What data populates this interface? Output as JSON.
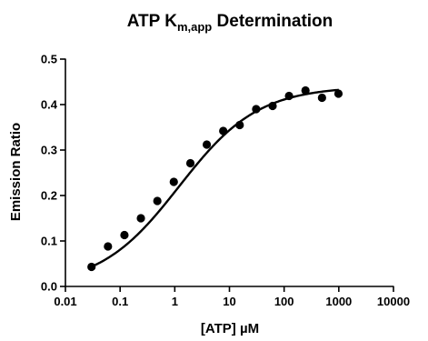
{
  "chart_data": {
    "type": "scatter",
    "title": {
      "main": "ATP K",
      "subscript": "m,app",
      "suffix": " Determination"
    },
    "xlabel": "[ATP] µM",
    "ylabel": "Emission Ratio",
    "x_scale": "log",
    "xlim": [
      0.01,
      10000
    ],
    "ylim": [
      0.0,
      0.5
    ],
    "x_ticks": [
      0.01,
      0.1,
      1,
      10,
      100,
      1000,
      10000
    ],
    "x_tick_labels": [
      "0.01",
      "0.1",
      "1",
      "10",
      "100",
      "1000",
      "10000"
    ],
    "y_ticks": [
      0.0,
      0.1,
      0.2,
      0.3,
      0.4,
      0.5
    ],
    "y_tick_labels": [
      "0.0",
      "0.1",
      "0.2",
      "0.3",
      "0.4",
      "0.5"
    ],
    "grid": false,
    "legend": "none",
    "marker_color": "#000000",
    "line_color": "#000000",
    "series": [
      {
        "points": [
          {
            "x": 0.03,
            "y": 0.043
          },
          {
            "x": 0.06,
            "y": 0.088
          },
          {
            "x": 0.12,
            "y": 0.113
          },
          {
            "x": 0.24,
            "y": 0.15
          },
          {
            "x": 0.48,
            "y": 0.188
          },
          {
            "x": 0.96,
            "y": 0.23
          },
          {
            "x": 1.93,
            "y": 0.271
          },
          {
            "x": 3.85,
            "y": 0.312
          },
          {
            "x": 7.7,
            "y": 0.342
          },
          {
            "x": 15.4,
            "y": 0.355
          },
          {
            "x": 30.8,
            "y": 0.39
          },
          {
            "x": 61.6,
            "y": 0.397
          },
          {
            "x": 123,
            "y": 0.419
          },
          {
            "x": 246,
            "y": 0.431
          },
          {
            "x": 493,
            "y": 0.415
          },
          {
            "x": 986,
            "y": 0.424
          }
        ]
      }
    ],
    "fit_curve": {
      "model": "sigmoidal dose-response",
      "bottom": 0.0,
      "top": 0.44,
      "ec50": 1.2,
      "hill_slope": 0.6,
      "x_range": [
        0.03,
        1000
      ]
    }
  }
}
